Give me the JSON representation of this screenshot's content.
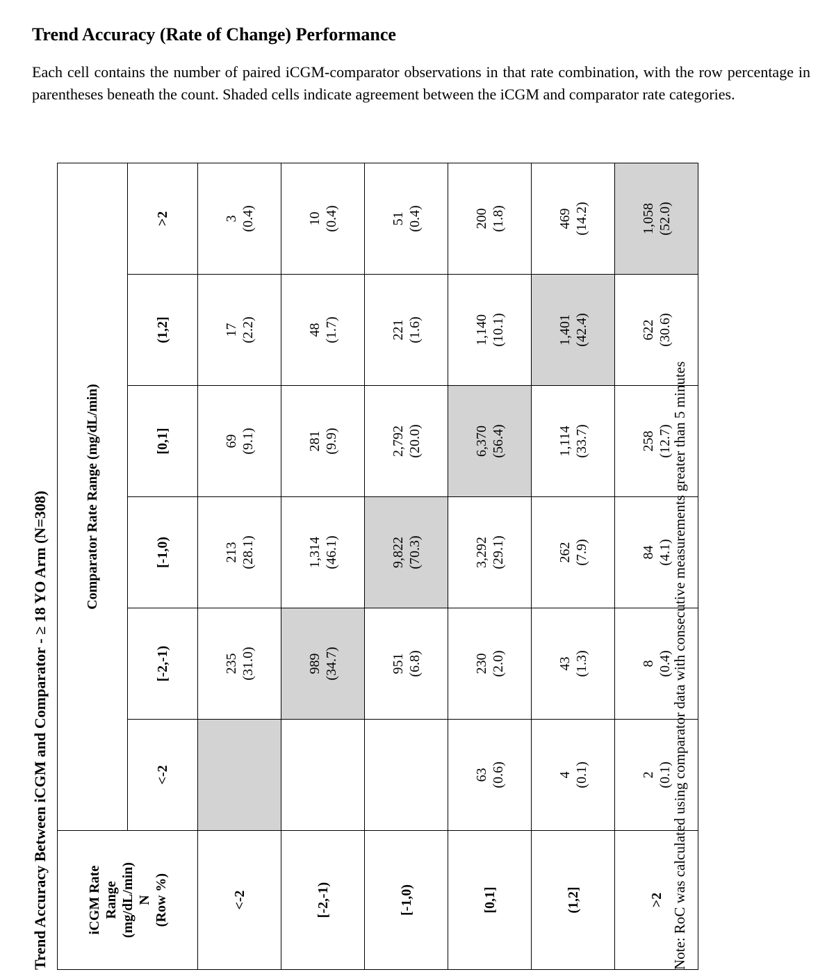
{
  "page": {
    "title": "Trend Accuracy (Rate of Change) Performance",
    "intro": "Each cell contains the number of paired iCGM-comparator observations in that rate combination, with the row percentage in parentheses beneath the count. Shaded cells indicate agreement between the iCGM and comparator rate categories."
  },
  "table": {
    "caption": "Trend Accuracy Between iCGM and Comparator - ≥ 18 YO Arm (N=308)",
    "row_header": [
      "iCGM Rate",
      "Range",
      "(mg/dL/min)",
      "N",
      "(Row %)"
    ],
    "comparator_header": "Comparator Rate Range (mg/dL/min)",
    "columns": [
      "<-2",
      "[-2,-1)",
      "[-1,0)",
      "[0,1]",
      "(1,2]",
      ">2"
    ],
    "rows": [
      {
        "label": "<-2",
        "cells": [
          {
            "count": "",
            "pct": "",
            "shaded": true
          },
          {
            "count": "235",
            "pct": "(31.0)",
            "shaded": false
          },
          {
            "count": "213",
            "pct": "(28.1)",
            "shaded": false
          },
          {
            "count": "69",
            "pct": "(9.1)",
            "shaded": false
          },
          {
            "count": "17",
            "pct": "(2.2)",
            "shaded": false
          },
          {
            "count": "3",
            "pct": "(0.4)",
            "shaded": false
          }
        ]
      },
      {
        "label": "[-2,-1)",
        "cells": [
          {
            "count": "",
            "pct": "",
            "shaded": false
          },
          {
            "count": "989",
            "pct": "(34.7)",
            "shaded": true
          },
          {
            "count": "1,314",
            "pct": "(46.1)",
            "shaded": false
          },
          {
            "count": "281",
            "pct": "(9.9)",
            "shaded": false
          },
          {
            "count": "48",
            "pct": "(1.7)",
            "shaded": false
          },
          {
            "count": "10",
            "pct": "(0.4)",
            "shaded": false
          }
        ]
      },
      {
        "label": "[-1,0)",
        "cells": [
          {
            "count": "",
            "pct": "",
            "shaded": false
          },
          {
            "count": "951",
            "pct": "(6.8)",
            "shaded": false
          },
          {
            "count": "9,822",
            "pct": "(70.3)",
            "shaded": true
          },
          {
            "count": "2,792",
            "pct": "(20.0)",
            "shaded": false
          },
          {
            "count": "221",
            "pct": "(1.6)",
            "shaded": false
          },
          {
            "count": "51",
            "pct": "(0.4)",
            "shaded": false
          }
        ]
      },
      {
        "label": "[0,1]",
        "cells": [
          {
            "count": "63",
            "pct": "(0.6)",
            "shaded": false
          },
          {
            "count": "230",
            "pct": "(2.0)",
            "shaded": false
          },
          {
            "count": "3,292",
            "pct": "(29.1)",
            "shaded": false
          },
          {
            "count": "6,370",
            "pct": "(56.4)",
            "shaded": true
          },
          {
            "count": "1,140",
            "pct": "(10.1)",
            "shaded": false
          },
          {
            "count": "200",
            "pct": "(1.8)",
            "shaded": false
          }
        ]
      },
      {
        "label": "(1,2]",
        "cells": [
          {
            "count": "4",
            "pct": "(0.1)",
            "shaded": false
          },
          {
            "count": "43",
            "pct": "(1.3)",
            "shaded": false
          },
          {
            "count": "262",
            "pct": "(7.9)",
            "shaded": false
          },
          {
            "count": "1,114",
            "pct": "(33.7)",
            "shaded": false
          },
          {
            "count": "1,401",
            "pct": "(42.4)",
            "shaded": true
          },
          {
            "count": "469",
            "pct": "(14.2)",
            "shaded": false
          }
        ]
      },
      {
        "label": ">2",
        "cells": [
          {
            "count": "2",
            "pct": "(0.1)",
            "shaded": false
          },
          {
            "count": "8",
            "pct": "(0.4)",
            "shaded": false
          },
          {
            "count": "84",
            "pct": "(4.1)",
            "shaded": false
          },
          {
            "count": "258",
            "pct": "(12.7)",
            "shaded": false
          },
          {
            "count": "622",
            "pct": "(30.6)",
            "shaded": false
          },
          {
            "count": "1,058",
            "pct": "(52.0)",
            "shaded": true
          }
        ]
      }
    ],
    "note": "Note: RoC was calculated using comparator data with consecutive measurements greater than 5 minutes"
  }
}
